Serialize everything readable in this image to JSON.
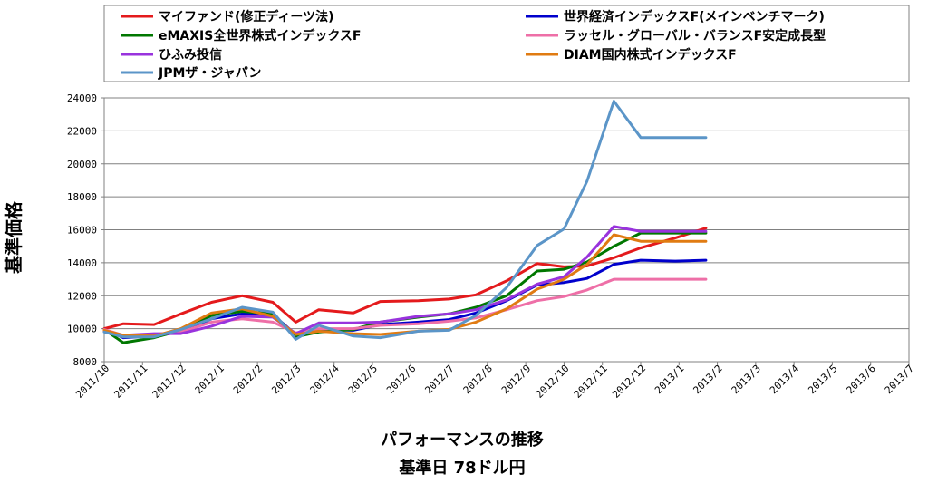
{
  "chart_data": {
    "type": "line",
    "ylabel": "基準価格",
    "xlabel": "パフォーマンスの推移",
    "xlabel_sub": "基準日 78ドル円",
    "ylim": [
      8000,
      24000
    ],
    "yticks": [
      8000,
      10000,
      12000,
      14000,
      16000,
      18000,
      20000,
      22000,
      24000
    ],
    "ytick_labels": [
      "8000",
      "10000",
      "12000",
      "14000",
      "16000",
      "18000",
      "20000",
      "22000",
      "24000"
    ],
    "xtick_labels": [
      "2011/10",
      "2011/11",
      "2011/12",
      "2012/1",
      "2012/2",
      "2012/3",
      "2012/4",
      "2012/5",
      "2012/6",
      "2012/7",
      "2012/8",
      "2012/9",
      "2012/10",
      "2012/11",
      "2012/12",
      "2013/1",
      "2013/2",
      "2013/3",
      "2013/4",
      "2013/5",
      "2013/6",
      "2013/7"
    ],
    "grid": "horizontal",
    "legend_position": "top",
    "series": [
      {
        "name": "マイファンド(修正ディーツ法)",
        "color": "#e41a1c",
        "x": [
          0,
          0.5,
          1.3,
          2.0,
          2.8,
          3.6,
          4.4,
          5.0,
          5.6,
          6.5,
          7.2,
          8.2,
          9.0,
          9.7,
          10.5,
          11.3,
          12.0,
          12.6,
          13.3,
          14.0,
          14.9,
          15.7
        ],
        "y": [
          10000,
          10300,
          10250,
          10900,
          11600,
          12000,
          11600,
          10400,
          11150,
          10950,
          11650,
          11700,
          11800,
          12050,
          12900,
          13950,
          13750,
          13800,
          14300,
          14900,
          15500,
          16100
        ]
      },
      {
        "name": "世界経済インデックスF(メインベンチマーク)",
        "color": "#0000cc",
        "x": [
          0,
          0.5,
          1.3,
          2.0,
          2.8,
          3.6,
          4.4,
          5.0,
          5.6,
          6.5,
          7.2,
          8.2,
          9.0,
          9.7,
          10.5,
          11.3,
          12.0,
          12.6,
          13.3,
          14.0,
          14.9,
          15.7
        ],
        "y": [
          9950,
          9450,
          9550,
          9800,
          10600,
          10900,
          10850,
          9650,
          9950,
          9900,
          10250,
          10400,
          10550,
          10950,
          11700,
          12650,
          12800,
          13050,
          13900,
          14150,
          14100,
          14150
        ]
      },
      {
        "name": "eMAXIS全世界株式インデックスF",
        "color": "#007700",
        "x": [
          0,
          0.5,
          1.3,
          2.0,
          2.8,
          3.6,
          4.4,
          5.0,
          5.6,
          6.5,
          7.2,
          8.2,
          9.0,
          9.7,
          10.5,
          11.3,
          12.0,
          12.6,
          13.3,
          14.0,
          14.9,
          15.7
        ],
        "y": [
          9950,
          9150,
          9450,
          9900,
          10800,
          11050,
          10900,
          9500,
          9800,
          9950,
          10400,
          10700,
          10900,
          11300,
          12000,
          13500,
          13600,
          14050,
          15000,
          15800,
          15800,
          15800
        ]
      },
      {
        "name": "ラッセル・グローバル・バランスF安定成長型",
        "color": "#ee6fa7",
        "x": [
          0,
          0.5,
          1.3,
          2.0,
          2.8,
          3.6,
          4.4,
          5.0,
          5.6,
          6.5,
          7.2,
          8.2,
          9.0,
          9.7,
          10.5,
          11.3,
          12.0,
          12.6,
          13.3,
          14.0,
          14.9,
          15.7
        ],
        "y": [
          9950,
          9600,
          9650,
          9800,
          10400,
          10600,
          10400,
          9750,
          10000,
          10000,
          10200,
          10300,
          10450,
          10650,
          11150,
          11700,
          11950,
          12350,
          13000,
          13000,
          13000,
          13000
        ]
      },
      {
        "name": "ひふみ投信",
        "color": "#9933dd",
        "x": [
          0,
          0.5,
          1.3,
          2.0,
          2.8,
          3.6,
          4.4,
          5.0,
          5.6,
          6.5,
          7.2,
          8.2,
          9.0,
          9.7,
          10.5,
          11.3,
          12.0,
          12.6,
          13.3,
          14.0,
          14.9,
          15.7
        ],
        "y": [
          9850,
          9600,
          9700,
          9700,
          10150,
          10750,
          10700,
          9700,
          10350,
          10350,
          10400,
          10750,
          10900,
          11150,
          11750,
          12700,
          13150,
          14350,
          16200,
          15900,
          15900,
          15900
        ]
      },
      {
        "name": "DIAM国内株式インデックスF",
        "color": "#e07b12",
        "x": [
          0,
          0.5,
          1.3,
          2.0,
          2.8,
          3.6,
          4.4,
          5.0,
          5.6,
          6.5,
          7.2,
          8.2,
          9.0,
          9.7,
          10.5,
          11.3,
          12.0,
          12.6,
          13.3,
          14.0,
          14.9,
          15.7
        ],
        "y": [
          9900,
          9600,
          9550,
          10000,
          10950,
          11200,
          10750,
          9650,
          9850,
          9700,
          9650,
          9850,
          9950,
          10400,
          11200,
          12400,
          13000,
          13900,
          15700,
          15300,
          15300,
          15300
        ]
      },
      {
        "name": "JPMザ・ジャパン",
        "color": "#5b95c8",
        "x": [
          0,
          0.5,
          1.3,
          2.0,
          2.8,
          3.6,
          4.4,
          5.0,
          5.6,
          6.5,
          7.2,
          8.2,
          9.0,
          9.7,
          10.5,
          11.3,
          12.0,
          12.6,
          13.3,
          14.0,
          14.9,
          15.7
        ],
        "y": [
          9800,
          9500,
          9500,
          9950,
          10600,
          11300,
          11000,
          9350,
          10200,
          9550,
          9450,
          9850,
          9900,
          10800,
          12500,
          15050,
          16050,
          18950,
          23800,
          21600,
          21600,
          21600
        ]
      }
    ]
  }
}
